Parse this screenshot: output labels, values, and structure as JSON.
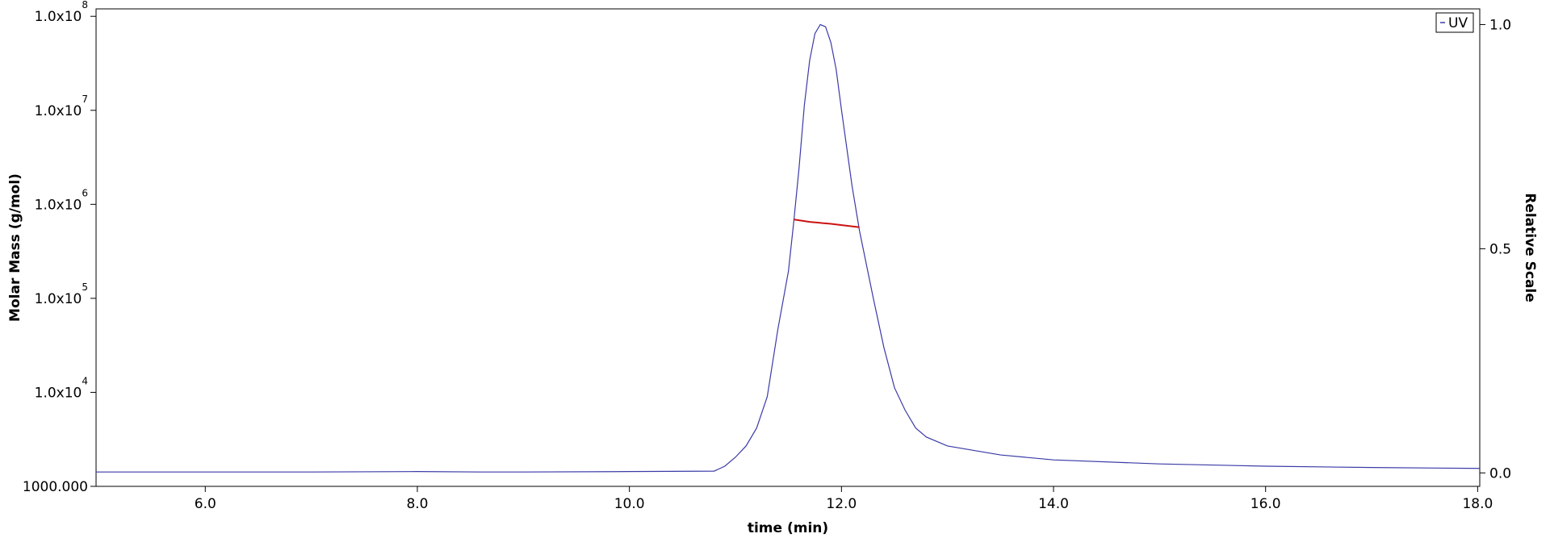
{
  "chart_data": {
    "type": "line",
    "xlabel": "time (min)",
    "ylabel": "Molar Mass (g/mol)",
    "y2label": "Relative Scale",
    "yscale": "log",
    "xlim": [
      4.97,
      18.02
    ],
    "xticks": [
      {
        "value": 6,
        "label": "6.0"
      },
      {
        "value": 8,
        "label": "8.0"
      },
      {
        "value": 10,
        "label": "10.0"
      },
      {
        "value": 12,
        "label": "12.0"
      },
      {
        "value": 14,
        "label": "14.0"
      },
      {
        "value": 16,
        "label": "16.0"
      },
      {
        "value": 18,
        "label": "18.0"
      }
    ],
    "ylim": [
      1000,
      120000000
    ],
    "yticks": [
      {
        "value": 1000,
        "label": "1000.000"
      },
      {
        "value": 10000,
        "label": "1.0x10",
        "sup": "4"
      },
      {
        "value": 100000,
        "label": "1.0x10",
        "sup": "5"
      },
      {
        "value": 1000000,
        "label": "1.0x10",
        "sup": "6"
      },
      {
        "value": 10000000,
        "label": "1.0x10",
        "sup": "7"
      },
      {
        "value": 100000000,
        "label": "1.0x10",
        "sup": "8"
      }
    ],
    "y2lim": [
      -0.03,
      1.035
    ],
    "y2ticks": [
      {
        "value": 0,
        "label": "0.0"
      },
      {
        "value": 0.5,
        "label": "0.5"
      },
      {
        "value": 1,
        "label": "1.0"
      }
    ],
    "legend": "top-right",
    "series": [
      {
        "name": "UV",
        "color": "#3a3aa8",
        "axis": "y2",
        "x": [
          4.97,
          6,
          7,
          8,
          8.6,
          9,
          10,
          10.8,
          10.9,
          11.0,
          11.1,
          11.2,
          11.3,
          11.4,
          11.5,
          11.55,
          11.6,
          11.65,
          11.7,
          11.75,
          11.8,
          11.85,
          11.9,
          11.95,
          12.0,
          12.1,
          12.17,
          12.3,
          12.4,
          12.5,
          12.6,
          12.7,
          12.8,
          13.0,
          13.5,
          14,
          15,
          16,
          17,
          18.02
        ],
        "values": [
          0.002,
          0.002,
          0.002,
          0.003,
          0.002,
          0.002,
          0.003,
          0.004,
          0.015,
          0.035,
          0.06,
          0.1,
          0.17,
          0.32,
          0.45,
          0.56,
          0.68,
          0.82,
          0.92,
          0.98,
          1.0,
          0.995,
          0.96,
          0.9,
          0.81,
          0.64,
          0.54,
          0.39,
          0.28,
          0.19,
          0.14,
          0.1,
          0.08,
          0.06,
          0.04,
          0.029,
          0.02,
          0.015,
          0.012,
          0.01
        ]
      },
      {
        "color": "#cc1111",
        "axis": "y",
        "x": [
          11.55,
          11.7,
          11.9,
          12.17
        ],
        "values": [
          690000,
          650000,
          620000,
          570000
        ]
      }
    ]
  }
}
